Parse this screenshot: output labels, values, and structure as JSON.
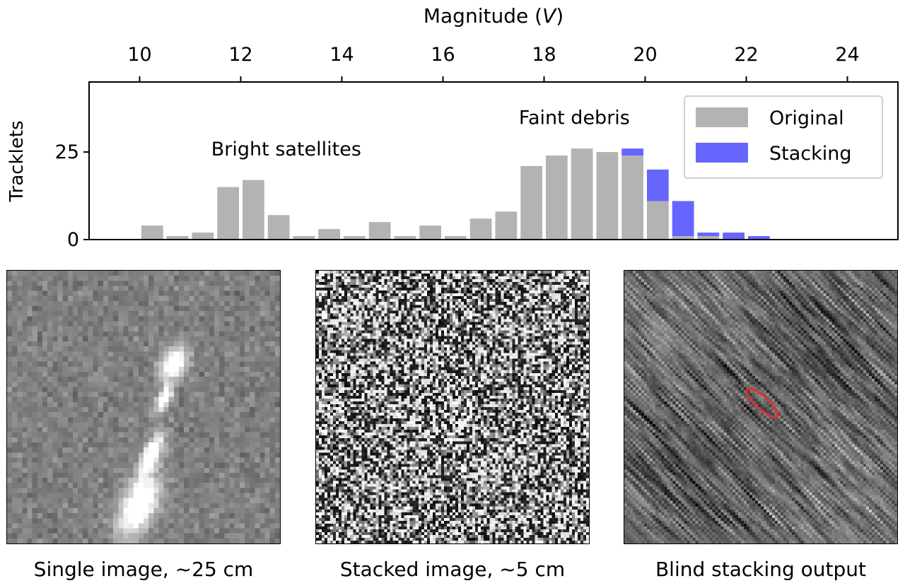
{
  "chart_data": {
    "type": "bar",
    "xlabel_main": "Magnitude (",
    "xlabel_var": "V",
    "xlabel_close": ")",
    "ylabel": "Tracklets",
    "xlim": [
      9,
      25
    ],
    "ylim": [
      0,
      45
    ],
    "x_ticks": [
      10,
      12,
      14,
      16,
      18,
      20,
      22,
      24
    ],
    "y_ticks": [
      0,
      25
    ],
    "annotations": [
      {
        "text": "Bright satellites",
        "x": 12.9,
        "y": 24
      },
      {
        "text": "Faint debris",
        "x": 18.6,
        "y": 33
      }
    ],
    "legend": {
      "position": "top-right"
    },
    "bin_width": 0.5,
    "series": [
      {
        "name": "Original",
        "color": "#b3b3b3",
        "x": [
          10.25,
          10.75,
          11.25,
          11.75,
          12.25,
          12.75,
          13.25,
          13.75,
          14.25,
          14.75,
          15.25,
          15.75,
          16.25,
          16.75,
          17.25,
          17.75,
          18.25,
          18.75,
          19.25,
          19.75,
          20.25,
          20.75,
          21.25
        ],
        "values": [
          4,
          1,
          2,
          15,
          17,
          7,
          1,
          3,
          1,
          5,
          1,
          4,
          1,
          6,
          8,
          21,
          24,
          26,
          25,
          24,
          11,
          1,
          1
        ]
      },
      {
        "name": "Stacking",
        "color": "#6666ff",
        "x": [
          19.75,
          20.25,
          20.75,
          21.25,
          21.75,
          22.25
        ],
        "bottom": [
          24,
          11,
          1,
          1,
          0,
          0
        ],
        "values": [
          2,
          9,
          10,
          1,
          2,
          1
        ]
      }
    ]
  },
  "panels": [
    {
      "caption": "Single image, ~25 cm"
    },
    {
      "caption": "Stacked image, ~5 cm"
    },
    {
      "caption": "Blind stacking output"
    }
  ],
  "colors": {
    "background": "#ffffff",
    "axis": "#000000",
    "ellipse": "#e03030"
  }
}
